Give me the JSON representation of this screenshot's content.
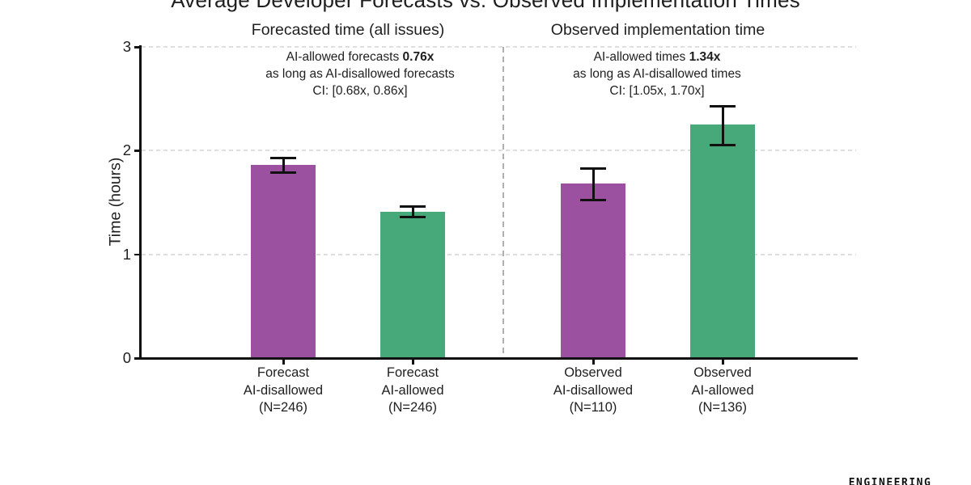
{
  "footer": {
    "logo_text": "ENGINEERING"
  },
  "chart_data": {
    "type": "bar",
    "title": "Average Developer Forecasts vs. Observed Implementation Times",
    "ylabel": "Time (hours)",
    "ylim": [
      0,
      3
    ],
    "yticks": [
      0,
      1,
      2,
      3
    ],
    "grid": "horizontal-dashed",
    "legend": "none",
    "colors": {
      "ai_disallowed": "#9b519f",
      "ai_allowed": "#47a97a",
      "error_bar": "#111111"
    },
    "panels": [
      {
        "subtitle": "Forecasted time (all issues)",
        "annotation": {
          "intro": "AI-allowed forecasts",
          "ratio": "0.76x",
          "line2": "as long as AI-disallowed forecasts",
          "ci": "CI: [0.68x, 0.86x]"
        },
        "bars": [
          {
            "label_lines": [
              "Forecast",
              "AI-disallowed",
              "(N=246)"
            ],
            "value": 1.86,
            "ci": [
              1.79,
              1.93
            ],
            "color_key": "ai_disallowed"
          },
          {
            "label_lines": [
              "Forecast",
              "AI-allowed",
              "(N=246)"
            ],
            "value": 1.41,
            "ci": [
              1.36,
              1.46
            ],
            "color_key": "ai_allowed"
          }
        ]
      },
      {
        "subtitle": "Observed implementation time",
        "annotation": {
          "intro": "AI-allowed times",
          "ratio": "1.34x",
          "line2": "as long as AI-disallowed times",
          "ci": "CI: [1.05x, 1.70x]"
        },
        "bars": [
          {
            "label_lines": [
              "Observed",
              "AI-disallowed",
              "(N=110)"
            ],
            "value": 1.68,
            "ci": [
              1.52,
              1.83
            ],
            "color_key": "ai_disallowed"
          },
          {
            "label_lines": [
              "Observed",
              "AI-allowed",
              "(N=136)"
            ],
            "value": 2.25,
            "ci": [
              2.05,
              2.43
            ],
            "color_key": "ai_allowed"
          }
        ]
      }
    ]
  }
}
